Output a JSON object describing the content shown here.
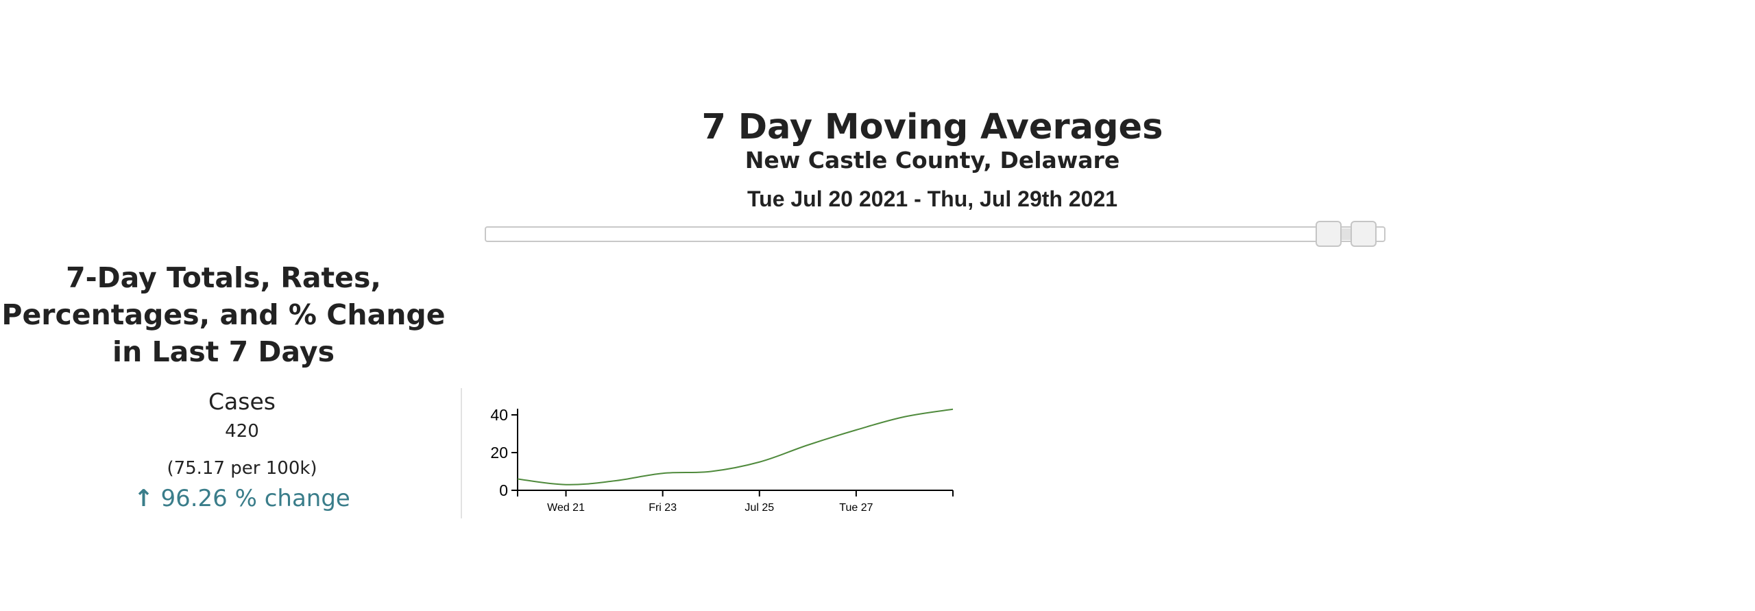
{
  "header": {
    "title": "7 Day Moving Averages",
    "subtitle": "New Castle County, Delaware",
    "date_range": "Tue Jul 20 2021 - Thu, Jul 29th 2021"
  },
  "date_slider": {
    "start_fraction": 0.937,
    "end_fraction": 0.976
  },
  "summary": {
    "title": "7-Day Totals, Rates, Percentages, and % Change in Last 7 Days",
    "metric": {
      "label": "Cases",
      "total": "420",
      "rate": "(75.17 per 100k)",
      "change_arrow": "↑",
      "change": "96.26 % change"
    }
  },
  "colors": {
    "line": "#4f8a3c",
    "change": "#3a7d8a"
  },
  "chart_data": {
    "type": "line",
    "x": [
      "2021-07-20",
      "2021-07-21",
      "2021-07-22",
      "2021-07-23",
      "2021-07-24",
      "2021-07-25",
      "2021-07-26",
      "2021-07-27",
      "2021-07-28",
      "2021-07-29"
    ],
    "series": [
      {
        "values": [
          6,
          3,
          5,
          9,
          10,
          15,
          24,
          32,
          39,
          43
        ]
      }
    ],
    "x_tick_labels": [
      {
        "x": "2021-07-21",
        "label": "Wed 21"
      },
      {
        "x": "2021-07-23",
        "label": "Fri 23"
      },
      {
        "x": "2021-07-25",
        "label": "Jul 25"
      },
      {
        "x": "2021-07-27",
        "label": "Tue 27"
      }
    ],
    "y_ticks": [
      0,
      20,
      40
    ],
    "ylim": [
      0,
      44
    ],
    "grid": false
  }
}
